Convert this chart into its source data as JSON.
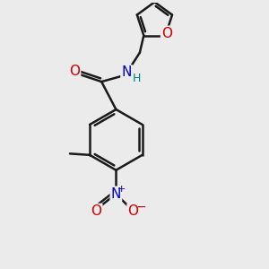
{
  "bg_color": "#ebebeb",
  "bond_color": "#1a1a1a",
  "bond_width": 1.8,
  "atom_colors": {
    "O": "#cc0000",
    "N": "#0000cc",
    "H": "#008080"
  },
  "font_size": 10
}
